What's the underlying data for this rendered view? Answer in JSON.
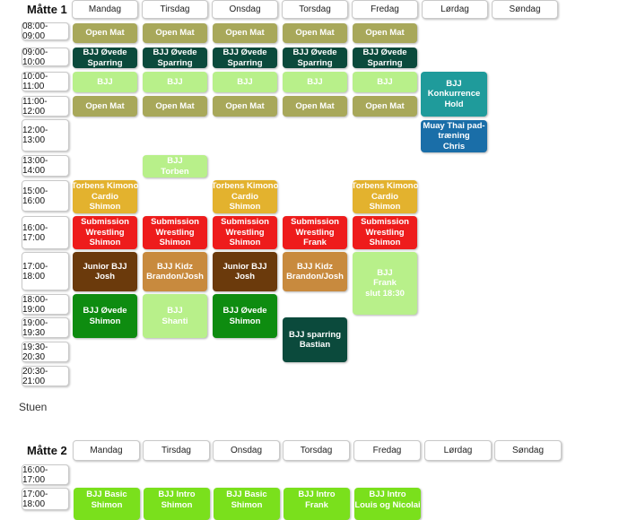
{
  "mat1": {
    "title": "Måtte 1",
    "days": [
      "Mandag",
      "Tirsdag",
      "Onsdag",
      "Torsdag",
      "Fredag",
      "Lørdag",
      "Søndag"
    ],
    "times": [
      "08:00-09:00",
      "09:00-10:00",
      "10:00-11:00",
      "11:00-12:00",
      "12:00-13:00",
      "13:00-14:00",
      "15:00-16:00",
      "16:00-17:00",
      "17:00-18:00",
      "18:00-19:00",
      "19:00-19:30",
      "19:30-20:30",
      "20:30-21:00"
    ]
  },
  "stuen_label": "Stuen",
  "mat2": {
    "title": "Måtte 2",
    "days": [
      "Mandag",
      "Tirsdag",
      "Onsdag",
      "Torsdag",
      "Fredag",
      "Lørdag",
      "Søndag"
    ],
    "times": [
      "16:00-17:00",
      "17:00-18:00"
    ]
  },
  "colors": {
    "open_mat": "#a8a85a",
    "ovede_sparring": "#0b4a3c",
    "bjj_light": "#b8f08a",
    "konkurrence": "#1f9b9b",
    "muay_thai": "#1a6ea8",
    "kimono_cardio": "#e3b22e",
    "submission": "#ee1c1c",
    "junior_bjj": "#6b3a0c",
    "bjj_kidz": "#c88a3e",
    "bjj_ovede_green": "#0e8c10",
    "sparring_bastian": "#0b4a3c",
    "mat2_green": "#7ae01c"
  },
  "events": [
    {
      "day": 0,
      "slot": 0,
      "lines": [
        "Open Mat"
      ],
      "color": "open_mat"
    },
    {
      "day": 1,
      "slot": 0,
      "lines": [
        "Open Mat"
      ],
      "color": "open_mat"
    },
    {
      "day": 2,
      "slot": 0,
      "lines": [
        "Open Mat"
      ],
      "color": "open_mat"
    },
    {
      "day": 3,
      "slot": 0,
      "lines": [
        "Open Mat"
      ],
      "color": "open_mat"
    },
    {
      "day": 4,
      "slot": 0,
      "lines": [
        "Open Mat"
      ],
      "color": "open_mat"
    },
    {
      "day": 0,
      "slot": 1,
      "lines": [
        "BJJ Øvede",
        "Sparring"
      ],
      "color": "ovede_sparring"
    },
    {
      "day": 1,
      "slot": 1,
      "lines": [
        "BJJ Øvede",
        "Sparring"
      ],
      "color": "ovede_sparring"
    },
    {
      "day": 2,
      "slot": 1,
      "lines": [
        "BJJ Øvede",
        "Sparring"
      ],
      "color": "ovede_sparring"
    },
    {
      "day": 3,
      "slot": 1,
      "lines": [
        "BJJ Øvede",
        "Sparring"
      ],
      "color": "ovede_sparring"
    },
    {
      "day": 4,
      "slot": 1,
      "lines": [
        "BJJ Øvede",
        "Sparring"
      ],
      "color": "ovede_sparring"
    },
    {
      "day": 0,
      "slot": 2,
      "lines": [
        "BJJ"
      ],
      "color": "bjj_light"
    },
    {
      "day": 1,
      "slot": 2,
      "lines": [
        "BJJ"
      ],
      "color": "bjj_light"
    },
    {
      "day": 2,
      "slot": 2,
      "lines": [
        "BJJ"
      ],
      "color": "bjj_light"
    },
    {
      "day": 3,
      "slot": 2,
      "lines": [
        "BJJ"
      ],
      "color": "bjj_light"
    },
    {
      "day": 4,
      "slot": 2,
      "lines": [
        "BJJ"
      ],
      "color": "bjj_light"
    },
    {
      "day": 5,
      "slot": 2,
      "span": 2,
      "lines": [
        "BJJ",
        "Konkurrence",
        "Hold"
      ],
      "color": "konkurrence"
    },
    {
      "day": 0,
      "slot": 3,
      "lines": [
        "Open Mat"
      ],
      "color": "open_mat"
    },
    {
      "day": 1,
      "slot": 3,
      "lines": [
        "Open Mat"
      ],
      "color": "open_mat"
    },
    {
      "day": 2,
      "slot": 3,
      "lines": [
        "Open Mat"
      ],
      "color": "open_mat"
    },
    {
      "day": 3,
      "slot": 3,
      "lines": [
        "Open Mat"
      ],
      "color": "open_mat"
    },
    {
      "day": 4,
      "slot": 3,
      "lines": [
        "Open Mat"
      ],
      "color": "open_mat"
    },
    {
      "day": 5,
      "slot": 4,
      "lines": [
        "Muay Thai pad-",
        "træning",
        "Chris"
      ],
      "color": "muay_thai"
    },
    {
      "day": 1,
      "slot": 5,
      "lines": [
        "BJJ",
        "Torben"
      ],
      "color": "bjj_light"
    },
    {
      "day": 0,
      "slot": 6,
      "lines": [
        "Torbens Kimono",
        "Cardio",
        "Shimon"
      ],
      "color": "kimono_cardio"
    },
    {
      "day": 2,
      "slot": 6,
      "lines": [
        "Torbens Kimono",
        "Cardio",
        "Shimon"
      ],
      "color": "kimono_cardio"
    },
    {
      "day": 4,
      "slot": 6,
      "lines": [
        "Torbens Kimono",
        "Cardio",
        "Shimon"
      ],
      "color": "kimono_cardio"
    },
    {
      "day": 0,
      "slot": 7,
      "lines": [
        "Submission",
        "Wrestling",
        "Shimon"
      ],
      "color": "submission"
    },
    {
      "day": 1,
      "slot": 7,
      "lines": [
        "Submission",
        "Wrestling",
        "Shimon"
      ],
      "color": "submission"
    },
    {
      "day": 2,
      "slot": 7,
      "lines": [
        "Submission",
        "Wrestling",
        "Shimon"
      ],
      "color": "submission"
    },
    {
      "day": 3,
      "slot": 7,
      "lines": [
        "Submission",
        "Wrestling",
        "Frank"
      ],
      "color": "submission"
    },
    {
      "day": 4,
      "slot": 7,
      "lines": [
        "Submission",
        "Wrestling",
        "Shimon"
      ],
      "color": "submission"
    },
    {
      "day": 0,
      "slot": 8,
      "lines": [
        "Junior BJJ",
        "Josh"
      ],
      "color": "junior_bjj"
    },
    {
      "day": 1,
      "slot": 8,
      "lines": [
        "BJJ Kidz",
        "Brandon/Josh"
      ],
      "color": "bjj_kidz"
    },
    {
      "day": 2,
      "slot": 8,
      "lines": [
        "Junior BJJ",
        "Josh"
      ],
      "color": "junior_bjj"
    },
    {
      "day": 3,
      "slot": 8,
      "lines": [
        "BJJ Kidz",
        "Brandon/Josh"
      ],
      "color": "bjj_kidz"
    },
    {
      "day": 4,
      "slot": 8,
      "span": 2,
      "lines": [
        "BJJ",
        "Frank",
        "slut 18:30"
      ],
      "color": "bjj_light"
    },
    {
      "day": 0,
      "slot": 9,
      "span": 2,
      "lines": [
        "BJJ Øvede",
        "Shimon"
      ],
      "color": "bjj_ovede_green"
    },
    {
      "day": 1,
      "slot": 9,
      "span": 2,
      "lines": [
        "BJJ",
        "Shanti"
      ],
      "color": "bjj_light"
    },
    {
      "day": 2,
      "slot": 9,
      "span": 2,
      "lines": [
        "BJJ Øvede",
        "Shimon"
      ],
      "color": "bjj_ovede_green"
    },
    {
      "day": 3,
      "slot": 10,
      "span": 2,
      "lines": [
        "BJJ sparring",
        "Bastian"
      ],
      "color": "sparring_bastian"
    }
  ],
  "mat2_events": [
    {
      "day": 0,
      "lines": [
        "BJJ Basic",
        "Shimon"
      ],
      "color": "mat2_green"
    },
    {
      "day": 1,
      "lines": [
        "BJJ Intro",
        "Shimon"
      ],
      "color": "mat2_green"
    },
    {
      "day": 2,
      "lines": [
        "BJJ Basic",
        "Shimon"
      ],
      "color": "mat2_green"
    },
    {
      "day": 3,
      "lines": [
        "BJJ Intro",
        "Frank"
      ],
      "color": "mat2_green"
    },
    {
      "day": 4,
      "lines": [
        "BJJ Intro",
        "Louis og Nicolai"
      ],
      "color": "mat2_green"
    }
  ]
}
